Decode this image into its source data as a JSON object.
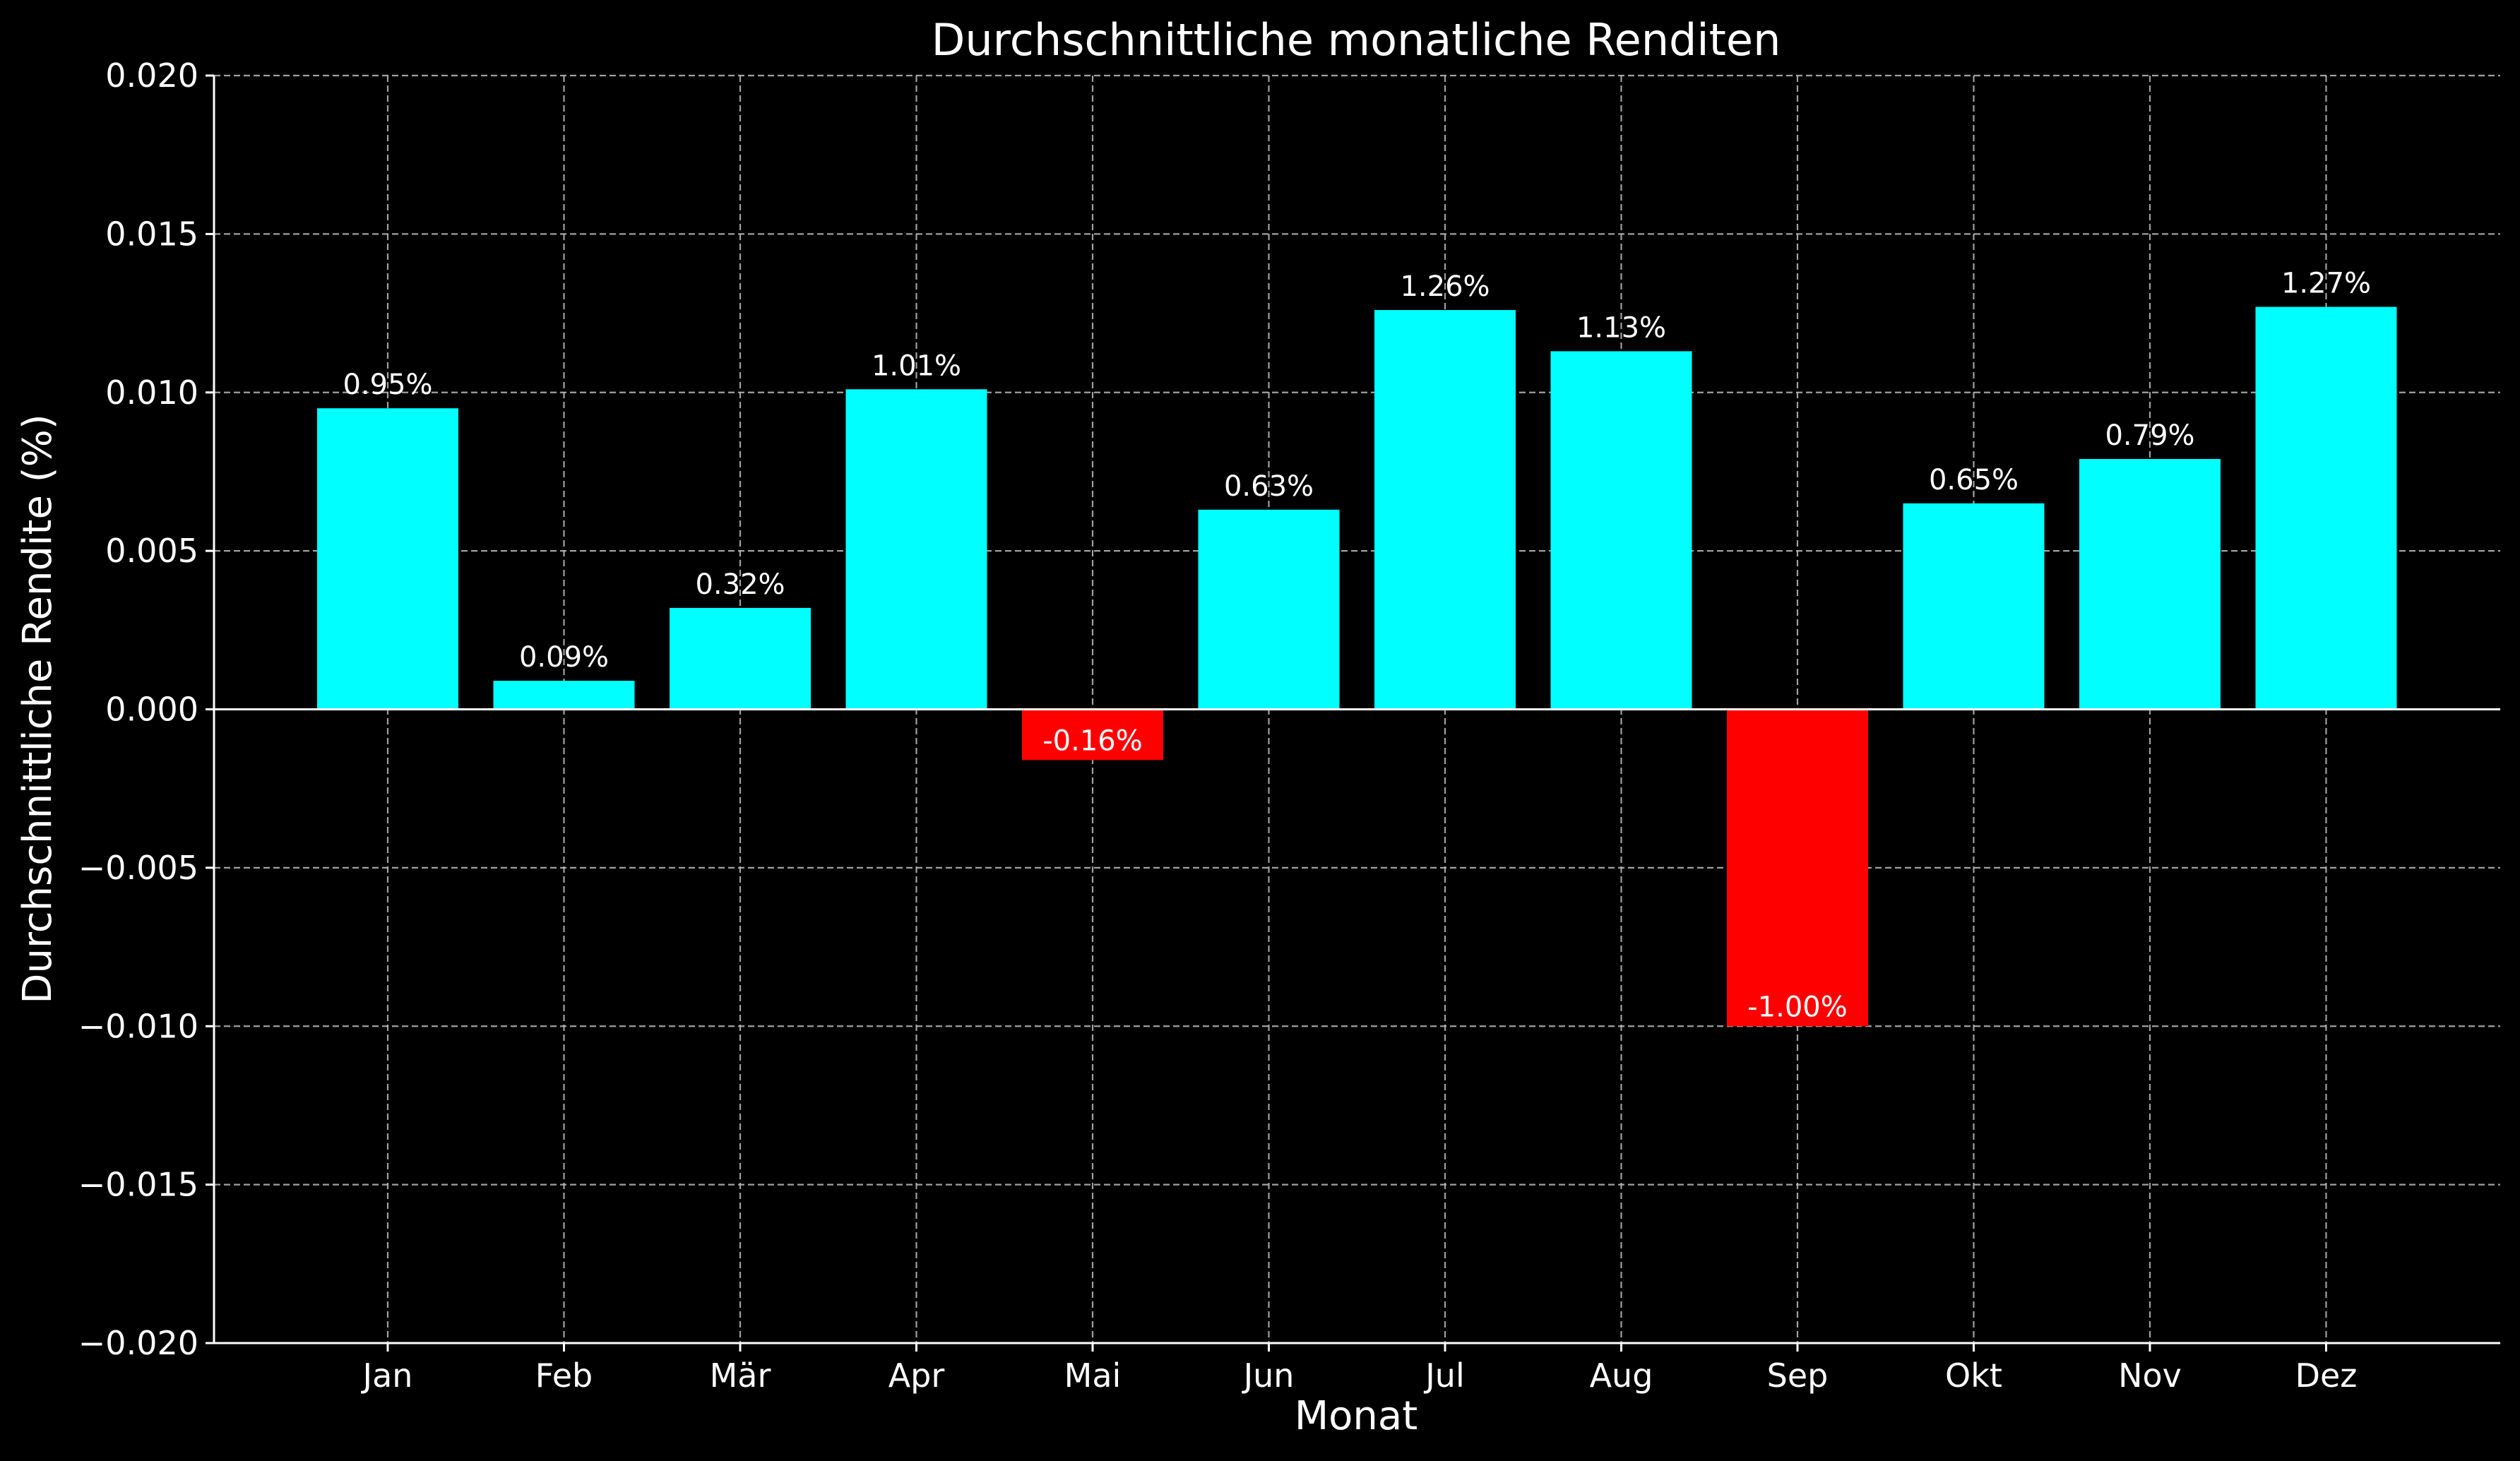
{
  "chart_data": {
    "type": "bar",
    "title": "Durchschnittliche monatliche Renditen",
    "xlabel": "Monat",
    "ylabel": "Durchschnittliche Rendite (%)",
    "ylim": [
      -0.02,
      0.02
    ],
    "yticks": [
      -0.02,
      -0.015,
      -0.01,
      -0.005,
      0.0,
      0.005,
      0.01,
      0.015,
      0.02
    ],
    "ytick_labels": [
      "−0.020",
      "−0.015",
      "−0.010",
      "−0.005",
      "0.000",
      "0.005",
      "0.010",
      "0.015",
      "0.020"
    ],
    "categories": [
      "Jan",
      "Feb",
      "Mär",
      "Apr",
      "Mai",
      "Jun",
      "Jul",
      "Aug",
      "Sep",
      "Okt",
      "Nov",
      "Dez"
    ],
    "values": [
      0.0095,
      0.0009,
      0.0032,
      0.0101,
      -0.0016,
      0.0063,
      0.0126,
      0.0113,
      -0.01,
      0.0065,
      0.0079,
      0.0127
    ],
    "data_labels": [
      "0.95%",
      "0.09%",
      "0.32%",
      "1.01%",
      "-0.16%",
      "0.63%",
      "1.26%",
      "1.13%",
      "-1.00%",
      "0.65%",
      "0.79%",
      "1.27%"
    ],
    "grid": true,
    "colors": {
      "positive": "#00ffff",
      "negative": "#ff0000",
      "background": "#000000",
      "text": "#ffffff",
      "grid": "#bdbdbd"
    }
  }
}
